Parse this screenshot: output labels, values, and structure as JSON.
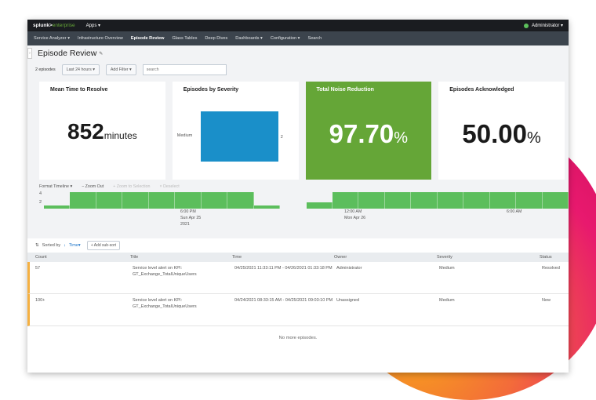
{
  "top": {
    "logo_a": "splunk>",
    "logo_b": "enterprise",
    "apps": "Apps ▾",
    "user": "Administrator ▾"
  },
  "nav": [
    "Service Analyzer ▾",
    "Infrastructure Overview",
    "Episode Review",
    "Glass Tables",
    "Deep Dives",
    "Dashboards ▾",
    "Configuration ▾",
    "Search"
  ],
  "page": {
    "title": "Episode Review",
    "count": "2 episodes",
    "time": "Last 24 hours ▾",
    "add_filter": "Add Filter ▾",
    "search_placeholder": "search"
  },
  "cards": {
    "mttr": {
      "title": "Mean Time to Resolve",
      "value": "852",
      "unit": "minutes"
    },
    "severity": {
      "title": "Episodes by Severity",
      "label": "Medium",
      "value": "2"
    },
    "noise": {
      "title": "Total Noise Reduction",
      "value": "97.70",
      "unit": "%"
    },
    "ack": {
      "title": "Episodes Acknowledged",
      "value": "50.00",
      "unit": "%"
    }
  },
  "colors": {
    "accent_green": "#65a637",
    "bar_blue": "#1a8fc9",
    "timeline_green": "#5cbe5c",
    "row_marker": "#f5b041"
  },
  "timeline": {
    "tools": {
      "format": "Format Timeline ▾",
      "zoom_out": "− Zoom Out",
      "zoom_sel": "+ Zoom to Selection",
      "deselect": "× Deselect"
    },
    "yticks": [
      "4",
      "2"
    ],
    "values": [
      1,
      5,
      5,
      5,
      5,
      5,
      5,
      5,
      1,
      0,
      2,
      5,
      5,
      5,
      5,
      5,
      5,
      5,
      5,
      5
    ],
    "xlabels": [
      {
        "l1": "6:00 PM",
        "l2": "Sun Apr 25",
        "l3": "2021"
      },
      {
        "l1": "12:00 AM",
        "l2": "Mon Apr 26",
        "l3": ""
      },
      {
        "l1": "6:00 AM",
        "l2": "",
        "l3": ""
      }
    ]
  },
  "sort": {
    "label": "Sorted by",
    "field": "Time▾",
    "add": "+ Add sub-sort"
  },
  "table": {
    "headers": [
      "Count",
      "Title",
      "Time",
      "Owner",
      "Severity",
      "Status"
    ],
    "rows": [
      {
        "count": "57",
        "title": "Service level alert on KPI: GT_Exchange_TotalUniqueUsers",
        "time": "04/25/2021 11:33:11 PM - 04/26/2021 01:33:18 PM",
        "owner": "Administrator",
        "severity": "Medium",
        "status": "Resolved"
      },
      {
        "count": "100+",
        "title": "Service level alert on KPI: GT_Exchange_TotalUniqueUsers",
        "time": "04/24/2021 08:33:15 AM - 04/25/2021 09:03:10 PM",
        "owner": "Unassigned",
        "severity": "Medium",
        "status": "New"
      }
    ],
    "footer": "No more episodes."
  }
}
